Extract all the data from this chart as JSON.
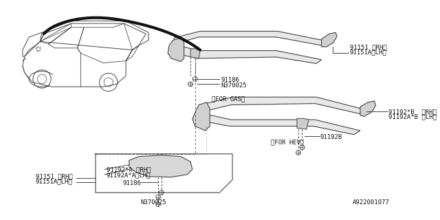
{
  "bg_color": "#ffffff",
  "diagram_id": "A922001077",
  "lc": "#444444",
  "lc_thin": "#666666",
  "black": "#111111",
  "fs": 5.8,
  "fs_label": 6.5,
  "labels": {
    "91151_RH": "91151 〈RH〉",
    "91151A_LH": "91151A〈LH〉",
    "91186_top": "91186",
    "N370025_top": "N370025",
    "for_gas": "〈FOR GAS〉",
    "91192B": "91192B",
    "91192starB_RH": "91192*B  〈RH〉",
    "91192A_starB_LH": "91192A*B 〈LH〉",
    "91151_RH_b": "91151 〈RH〉",
    "91151A_LH_b": "91151A〈LH〉",
    "91192starA_RH": "91192*A 〈RH〉",
    "91192AstarA_LH": "91192A*A〈LH〉",
    "91186_bot": "91186",
    "N370025_bot": "N370025",
    "for_hev": "〈FOR HEV〉"
  }
}
